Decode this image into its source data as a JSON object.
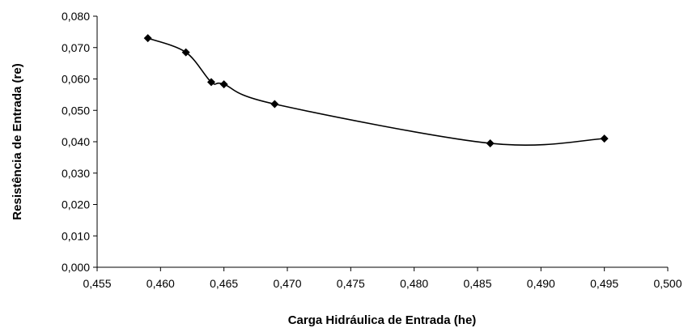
{
  "chart_data": {
    "type": "line",
    "title": "",
    "xlabel": "Carga Hidráulica de Entrada (he)",
    "ylabel": "Resistência de Entrada (re)",
    "xlim": [
      0.455,
      0.5
    ],
    "ylim": [
      0.0,
      0.08
    ],
    "xticks": [
      "0,455",
      "0,460",
      "0,465",
      "0,470",
      "0,475",
      "0,480",
      "0,485",
      "0,490",
      "0,495",
      "0,500"
    ],
    "yticks": [
      "0,000",
      "0,010",
      "0,020",
      "0,030",
      "0,040",
      "0,050",
      "0,060",
      "0,070",
      "0,080"
    ],
    "grid": false,
    "legend": "none",
    "marker": "diamond",
    "line_style": "smoothed",
    "color": "#000000",
    "series": [
      {
        "x": [
          0.459,
          0.462,
          0.464,
          0.465,
          0.469,
          0.486,
          0.495
        ],
        "y": [
          0.073,
          0.0685,
          0.059,
          0.0583,
          0.052,
          0.0395,
          0.041
        ]
      }
    ]
  }
}
